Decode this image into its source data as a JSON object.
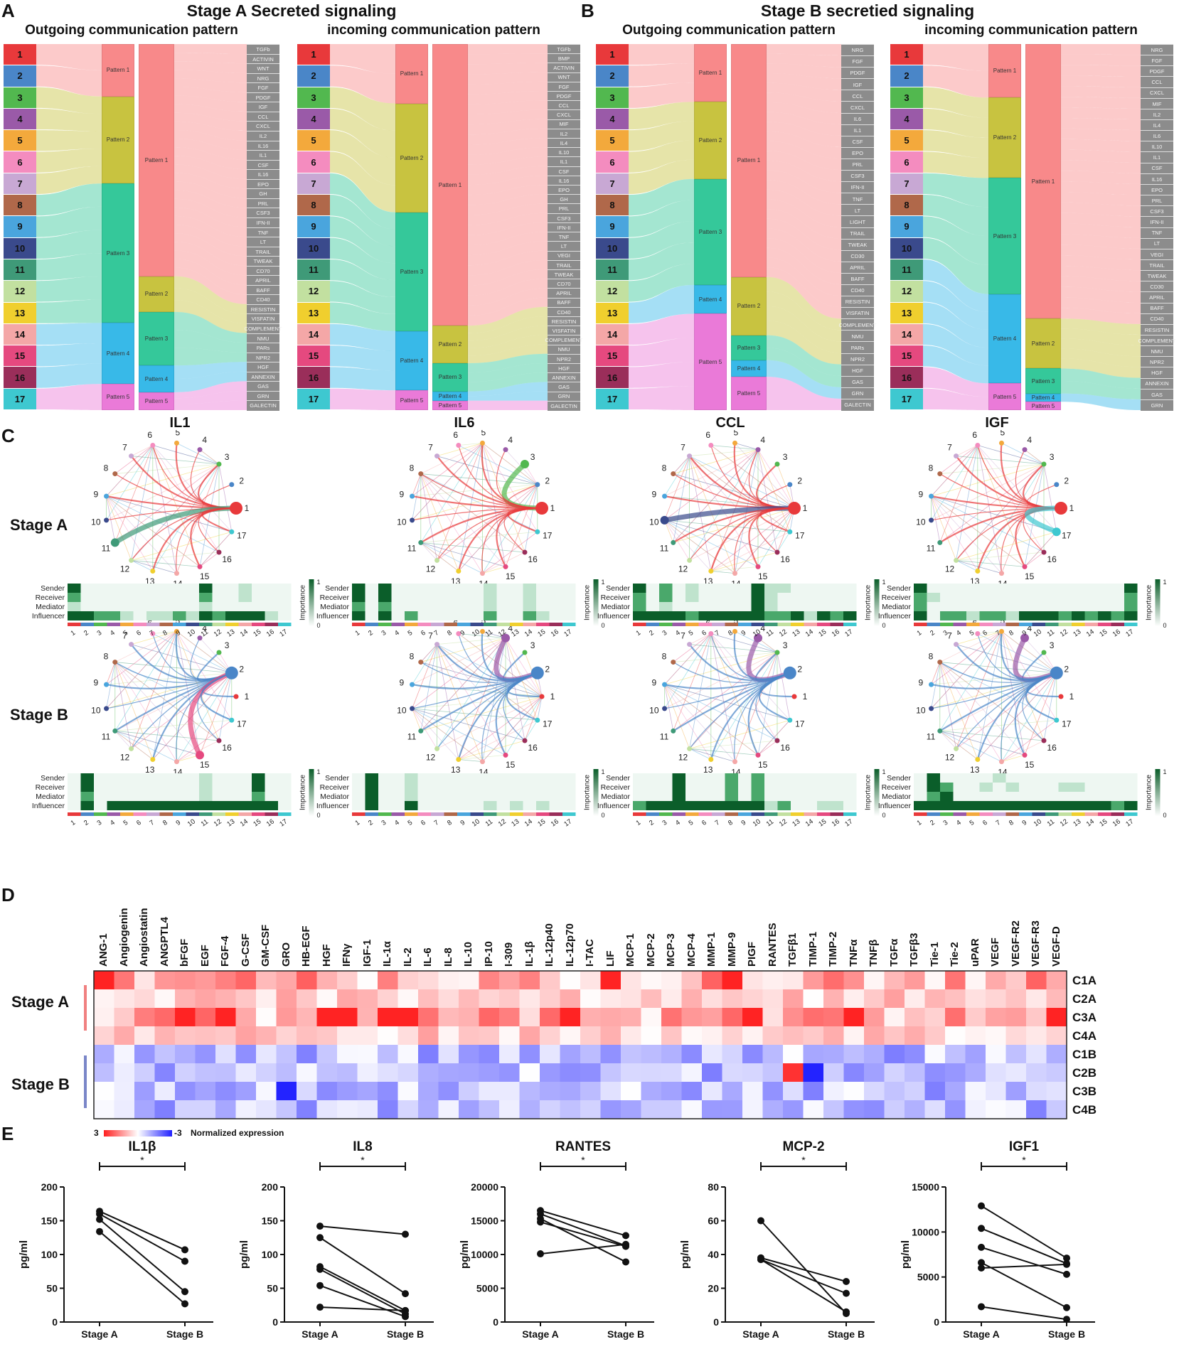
{
  "panelA": {
    "letter": "A",
    "title": "Stage A Secreted signaling",
    "outgoing_title": "Outgoing communication pattern",
    "incoming_title": "incoming communication pattern",
    "out_patterns": [
      "Pattern 1",
      "Pattern 2",
      "Pattern 3",
      "Pattern 4",
      "Pattern 5"
    ],
    "out_signals": [
      "TGFb",
      "ACTIVIN",
      "WNT",
      "NRG",
      "FGF",
      "PDGF",
      "IGF",
      "CCL",
      "CXCL",
      "IL2",
      "IL16",
      "IL1",
      "CSF",
      "IL16",
      "EPO",
      "GH",
      "PRL",
      "CSF3",
      "IFN-II",
      "TNF",
      "LT",
      "TRAIL",
      "TWEAK",
      "CD70",
      "APRIL",
      "BAFF",
      "CD40",
      "RESISTIN",
      "VISFATIN",
      "COMPLEMENT",
      "NMU",
      "PARs",
      "NPR2",
      "HGF",
      "ANNEXIN",
      "GAS",
      "GRN",
      "GALECTIN"
    ],
    "in_patterns": [
      "Pattern 1",
      "Pattern 2",
      "Pattern 3",
      "Pattern 4",
      "Pattern 5"
    ],
    "in_signals": [
      "TGFb",
      "BMP",
      "ACTIVIN",
      "WNT",
      "FGF",
      "PDGF",
      "CCL",
      "CXCL",
      "MIF",
      "IL2",
      "IL4",
      "IL10",
      "IL1",
      "CSF",
      "IL16",
      "EPO",
      "GH",
      "PRL",
      "CSF3",
      "IFN-II",
      "TNF",
      "LT",
      "VEGI",
      "TRAIL",
      "TWEAK",
      "CD70",
      "APRIL",
      "BAFF",
      "CD40",
      "RESISTIN",
      "VISFATIN",
      "COMPLEMENT",
      "NMU",
      "NPR2",
      "HGF",
      "ANNEXIN",
      "GAS",
      "GRN",
      "GALECTIN"
    ]
  },
  "panelB": {
    "letter": "B",
    "title": "Stage B secretied signaling",
    "outgoing_title": "Outgoing communication pattern",
    "incoming_title": "incoming communication pattern",
    "out_patterns": [
      "Pattern 1",
      "Pattern 2",
      "Pattern 3",
      "Pattern 4",
      "Pattern 5"
    ],
    "out_signals": [
      "NRG",
      "FGF",
      "PDGF",
      "IGF",
      "CCL",
      "CXCL",
      "IL6",
      "IL1",
      "CSF",
      "EPO",
      "PRL",
      "CSF3",
      "IFN-II",
      "TNF",
      "LT",
      "LIGHT",
      "TRAIL",
      "TWEAK",
      "CD30",
      "APRIL",
      "BAFF",
      "CD40",
      "RESISTIN",
      "VISFATIN",
      "COMPLEMENT",
      "NMU",
      "PARs",
      "NPR2",
      "HGF",
      "GAS",
      "GRN",
      "GALECTIN"
    ],
    "in_patterns": [
      "Pattern 1",
      "Pattern 2",
      "Pattern 3",
      "Pattern 4",
      "Pattern 5"
    ],
    "in_signals": [
      "NRG",
      "FGF",
      "PDGF",
      "CCL",
      "CXCL",
      "MIF",
      "IL2",
      "IL4",
      "IL6",
      "IL10",
      "IL1",
      "CSF",
      "IL16",
      "EPO",
      "PRL",
      "CSF3",
      "IFN-II",
      "TNF",
      "LT",
      "VEGI",
      "TRAIL",
      "TWEAK",
      "CD30",
      "APRIL",
      "BAFF",
      "CD40",
      "RESISTIN",
      "COMPLEMENT",
      "NMU",
      "NPR2",
      "HGF",
      "ANNEXIN",
      "GAS",
      "GRN"
    ]
  },
  "clusters": [
    "1",
    "2",
    "3",
    "4",
    "5",
    "6",
    "7",
    "8",
    "9",
    "10",
    "11",
    "12",
    "13",
    "14",
    "15",
    "16",
    "17"
  ],
  "cluster_colors": [
    "#e8393b",
    "#4a86c8",
    "#52b84f",
    "#9a5aa8",
    "#f3a93c",
    "#f48cbf",
    "#c8a8d4",
    "#b0684a",
    "#4aa5dd",
    "#3a4a8c",
    "#3f9a78",
    "#c2e0a0",
    "#f0cf2e",
    "#f4a7a7",
    "#e5497f",
    "#9a2e5a",
    "#3ec8d0"
  ],
  "pattern_colors": [
    "#f8898a",
    "#c8c340",
    "#35c89a",
    "#38b9e8",
    "#ea7ad8"
  ],
  "panelC": {
    "letter": "C",
    "networks": [
      "IL1",
      "IL6",
      "CCL",
      "IGF"
    ],
    "stage_a_label": "Stage A",
    "stage_b_label": "Stage B",
    "roles": [
      "Sender",
      "Receiver",
      "Mediator",
      "Influencer"
    ],
    "importance_label": "Importance",
    "scale_max": "1",
    "scale_min": "0"
  },
  "panelD": {
    "letter": "D",
    "stage_a_label": "Stage A",
    "stage_b_label": "Stage B",
    "columns": [
      "ANG-1",
      "Angiogenin",
      "Angiostatin",
      "ANGPTL4",
      "bFGF",
      "EGF",
      "FGF-4",
      "G-CSF",
      "GM-CSF",
      "GRO",
      "HB-EGF",
      "HGF",
      "IFNγ",
      "IGF-1",
      "IL-1α",
      "IL-2",
      "IL-6",
      "IL-8",
      "IL-10",
      "IP-10",
      "I-309",
      "IL-1β",
      "IL-12p40",
      "IL-12p70",
      "I-TAC",
      "LIF",
      "MCP-1",
      "MCP-2",
      "MCP-3",
      "MCP-4",
      "MMP-1",
      "MMP-9",
      "PIGF",
      "RANTES",
      "TGFβ1",
      "TIMP-1",
      "TIMP-2",
      "TNFα",
      "TNFβ",
      "TGFα",
      "TGFβ3",
      "Tie-1",
      "Tie-2",
      "uPAR",
      "VEGF",
      "VEGF-R2",
      "VEGF-R3",
      "VEGF-D"
    ],
    "rows": [
      "C1A",
      "C2A",
      "C3A",
      "C4A",
      "C1B",
      "C2B",
      "C3B",
      "C4B"
    ],
    "legend_max": "3",
    "legend_min": "-3",
    "legend_label": "Normalized expression"
  },
  "panelE": {
    "letter": "E",
    "ylabel": "pg/ml",
    "xlabels": [
      "Stage A",
      "Stage B"
    ],
    "sig": "*"
  },
  "chart_data": [
    {
      "type": "line",
      "title": "IL1β",
      "ylabel": "pg/ml",
      "x": [
        "Stage A",
        "Stage B"
      ],
      "ylim": [
        0,
        200
      ],
      "yticks": [
        0,
        50,
        100,
        150,
        200
      ],
      "series": [
        {
          "name": "p1",
          "values": [
            164,
            107
          ]
        },
        {
          "name": "p2",
          "values": [
            160,
            90
          ]
        },
        {
          "name": "p3",
          "values": [
            152,
            45
          ]
        },
        {
          "name": "p4",
          "values": [
            134,
            27
          ]
        }
      ]
    },
    {
      "type": "line",
      "title": "IL8",
      "ylabel": "pg/ml",
      "x": [
        "Stage A",
        "Stage B"
      ],
      "ylim": [
        0,
        200
      ],
      "yticks": [
        0,
        50,
        100,
        150,
        200
      ],
      "series": [
        {
          "name": "p1",
          "values": [
            142,
            130
          ]
        },
        {
          "name": "p2",
          "values": [
            125,
            42
          ]
        },
        {
          "name": "p3",
          "values": [
            82,
            17
          ]
        },
        {
          "name": "p4",
          "values": [
            78,
            12
          ]
        },
        {
          "name": "p5",
          "values": [
            54,
            8
          ]
        },
        {
          "name": "p6",
          "values": [
            22,
            17
          ]
        }
      ]
    },
    {
      "type": "line",
      "title": "RANTES",
      "ylabel": "pg/ml",
      "x": [
        "Stage A",
        "Stage B"
      ],
      "ylim": [
        0,
        20000
      ],
      "yticks": [
        0,
        5000,
        10000,
        15000,
        20000
      ],
      "series": [
        {
          "name": "p1",
          "values": [
            16500,
            12800
          ]
        },
        {
          "name": "p2",
          "values": [
            16000,
            11300
          ]
        },
        {
          "name": "p3",
          "values": [
            15300,
            8900
          ]
        },
        {
          "name": "p4",
          "values": [
            14800,
            11200
          ]
        },
        {
          "name": "p5",
          "values": [
            10100,
            11500
          ]
        }
      ]
    },
    {
      "type": "line",
      "title": "MCP-2",
      "ylabel": "pg/ml",
      "x": [
        "Stage A",
        "Stage B"
      ],
      "ylim": [
        0,
        80
      ],
      "yticks": [
        0,
        20,
        40,
        60,
        80
      ],
      "series": [
        {
          "name": "p1",
          "values": [
            60,
            5
          ]
        },
        {
          "name": "p2",
          "values": [
            38,
            24
          ]
        },
        {
          "name": "p3",
          "values": [
            37,
            17
          ]
        },
        {
          "name": "p4",
          "values": [
            37,
            6
          ]
        }
      ]
    },
    {
      "type": "line",
      "title": "IGF1",
      "ylabel": "pg/ml",
      "x": [
        "Stage A",
        "Stage B"
      ],
      "ylim": [
        0,
        15000
      ],
      "yticks": [
        0,
        5000,
        10000,
        15000
      ],
      "series": [
        {
          "name": "p1",
          "values": [
            12900,
            7100
          ]
        },
        {
          "name": "p2",
          "values": [
            10400,
            6500
          ]
        },
        {
          "name": "p3",
          "values": [
            8300,
            5300
          ]
        },
        {
          "name": "p4",
          "values": [
            6600,
            1600
          ]
        },
        {
          "name": "p5",
          "values": [
            6000,
            6400
          ]
        },
        {
          "name": "p6",
          "values": [
            1700,
            300
          ]
        }
      ]
    }
  ]
}
